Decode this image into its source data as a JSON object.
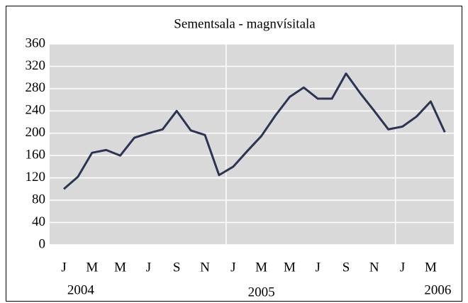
{
  "chart_data": {
    "type": "line",
    "title": "Sementsala - magnvísitala",
    "categories": [
      "J",
      null,
      "M",
      null,
      "M",
      null,
      "J",
      null,
      "S",
      null,
      "N",
      null,
      "J",
      null,
      "M",
      null,
      "M",
      null,
      "J",
      null,
      "S",
      null,
      "N",
      null,
      "J",
      null,
      "M",
      null
    ],
    "year_labels": [
      "2004",
      "2005",
      "2006"
    ],
    "series": [
      {
        "name": "Sementsala",
        "color": "#2b3552",
        "values": [
          100,
          122,
          165,
          170,
          160,
          192,
          200,
          207,
          240,
          205,
          197,
          125,
          140,
          168,
          195,
          232,
          265,
          282,
          262,
          262,
          307,
          272,
          240,
          207,
          212,
          230,
          257,
          202
        ]
      }
    ],
    "ylim": [
      0,
      360
    ],
    "yticks": [
      0,
      40,
      80,
      120,
      160,
      200,
      240,
      280,
      320,
      360
    ],
    "grid": true
  }
}
